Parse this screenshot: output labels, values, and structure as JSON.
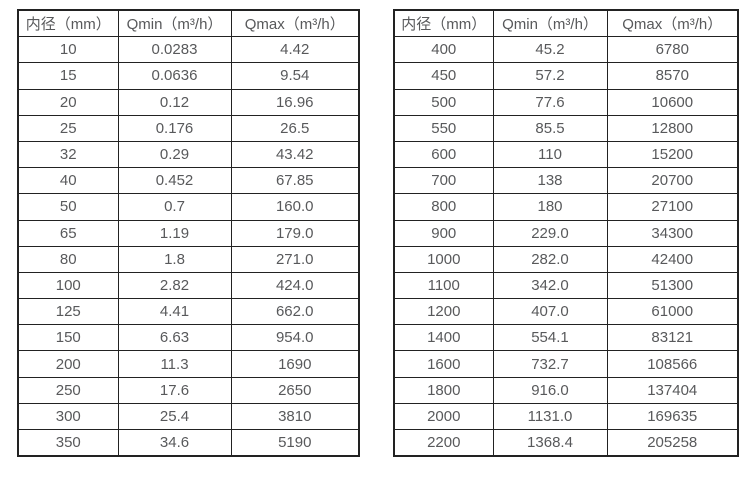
{
  "colors": {
    "background": "#ffffff",
    "border": "#222222",
    "text": "#58595b"
  },
  "tables": [
    {
      "name": "flow-rates-small-diameters",
      "headers": [
        "内径（mm）",
        "Qmin（m³/h）",
        "Qmax（m³/h）"
      ],
      "rows": [
        [
          "10",
          "0.0283",
          "4.42"
        ],
        [
          "15",
          "0.0636",
          "9.54"
        ],
        [
          "20",
          "0.12",
          "16.96"
        ],
        [
          "25",
          "0.176",
          "26.5"
        ],
        [
          "32",
          "0.29",
          "43.42"
        ],
        [
          "40",
          "0.452",
          "67.85"
        ],
        [
          "50",
          "0.7",
          "160.0"
        ],
        [
          "65",
          "1.19",
          "179.0"
        ],
        [
          "80",
          "1.8",
          "271.0"
        ],
        [
          "100",
          "2.82",
          "424.0"
        ],
        [
          "125",
          "4.41",
          "662.0"
        ],
        [
          "150",
          "6.63",
          "954.0"
        ],
        [
          "200",
          "11.3",
          "1690"
        ],
        [
          "250",
          "17.6",
          "2650"
        ],
        [
          "300",
          "25.4",
          "3810"
        ],
        [
          "350",
          "34.6",
          "5190"
        ]
      ]
    },
    {
      "name": "flow-rates-large-diameters",
      "headers": [
        "内径（mm）",
        "Qmin（m³/h）",
        "Qmax（m³/h）"
      ],
      "rows": [
        [
          "400",
          "45.2",
          "6780"
        ],
        [
          "450",
          "57.2",
          "8570"
        ],
        [
          "500",
          "77.6",
          "10600"
        ],
        [
          "550",
          "85.5",
          "12800"
        ],
        [
          "600",
          "110",
          "15200"
        ],
        [
          "700",
          "138",
          "20700"
        ],
        [
          "800",
          "180",
          "27100"
        ],
        [
          "900",
          "229.0",
          "34300"
        ],
        [
          "1000",
          "282.0",
          "42400"
        ],
        [
          "1100",
          "342.0",
          "51300"
        ],
        [
          "1200",
          "407.0",
          "61000"
        ],
        [
          "1400",
          "554.1",
          "83121"
        ],
        [
          "1600",
          "732.7",
          "108566"
        ],
        [
          "1800",
          "916.0",
          "137404"
        ],
        [
          "2000",
          "1131.0",
          "169635"
        ],
        [
          "2200",
          "1368.4",
          "205258"
        ]
      ]
    }
  ]
}
